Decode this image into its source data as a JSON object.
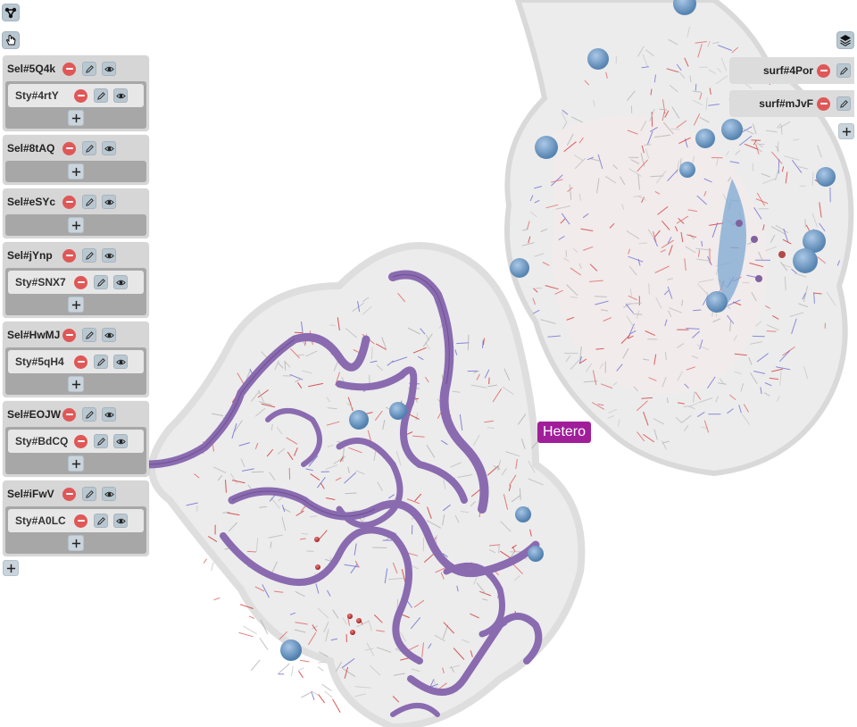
{
  "toolbar": {
    "network_icon": "network-icon",
    "pointer_icon": "hand-pointer-icon",
    "layers_icon": "layers-icon"
  },
  "selections": [
    {
      "name": "Sel#5Q4k",
      "styles": [
        "Sty#4rtY"
      ]
    },
    {
      "name": "Sel#8tAQ",
      "styles": []
    },
    {
      "name": "Sel#eSYc",
      "styles": []
    },
    {
      "name": "Sel#jYnp",
      "styles": [
        "Sty#SNX7"
      ]
    },
    {
      "name": "Sel#HwMJ",
      "styles": [
        "Sty#5qH4"
      ]
    },
    {
      "name": "Sel#EOJW",
      "styles": [
        "Sty#BdCQ"
      ]
    },
    {
      "name": "Sel#iFwV",
      "styles": [
        "Sty#A0LC"
      ]
    }
  ],
  "surfaces": [
    {
      "name": "surf#4Por"
    },
    {
      "name": "surf#mJvF"
    }
  ],
  "hover_label": "Hetero",
  "colors": {
    "ribbon": "#8a6bb0",
    "surface": "#e8e8e8",
    "hetero_label_bg": "#a01e9a",
    "remove_button": "#e05757"
  }
}
